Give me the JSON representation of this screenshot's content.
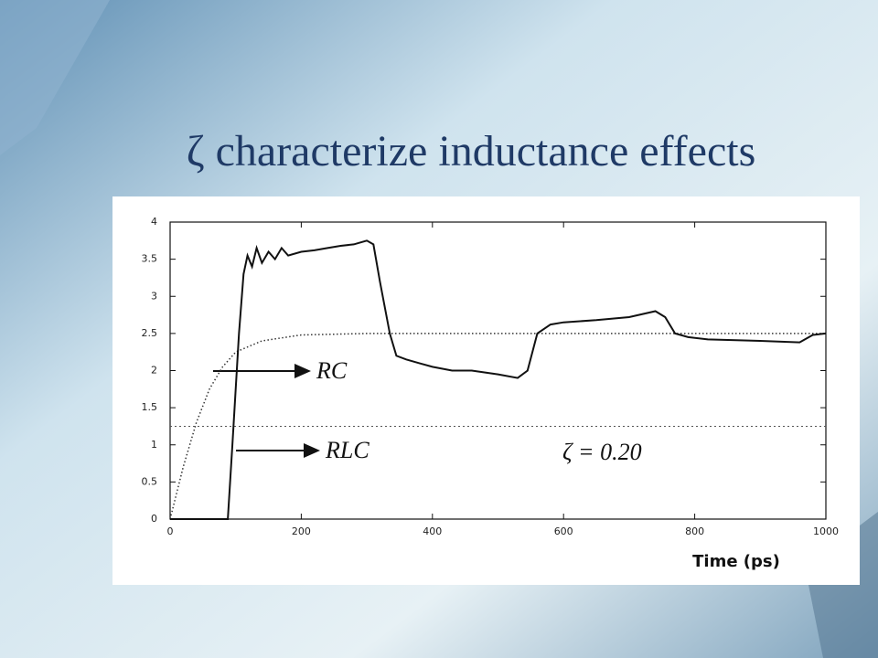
{
  "chart_data": {
    "type": "line",
    "title": "ζ characterize inductance effects",
    "x_label": "Time (ps)",
    "annotation": "ζ = 0.20",
    "xlim": [
      0,
      1000
    ],
    "xticks": [
      0,
      200,
      400,
      600,
      800,
      1000
    ],
    "ylim": [
      0,
      4
    ],
    "yticks": [
      0,
      0.5,
      1,
      1.5,
      2,
      2.5,
      3,
      3.5,
      4
    ],
    "reference_line": 1.25,
    "series": [
      {
        "name": "RC",
        "style": "dotted",
        "color": "#333333",
        "x": [
          0,
          20,
          40,
          60,
          80,
          100,
          140,
          200,
          300,
          1000
        ],
        "values": [
          0,
          0.7,
          1.3,
          1.75,
          2.05,
          2.25,
          2.4,
          2.48,
          2.5,
          2.5
        ]
      },
      {
        "name": "RLC",
        "style": "solid",
        "color": "#111111",
        "x": [
          0,
          88,
          95,
          105,
          112,
          118,
          125,
          132,
          140,
          150,
          160,
          170,
          180,
          200,
          220,
          240,
          260,
          280,
          300,
          310,
          320,
          335,
          345,
          360,
          380,
          400,
          430,
          460,
          500,
          530,
          545,
          560,
          580,
          600,
          650,
          700,
          740,
          755,
          770,
          790,
          820,
          900,
          960,
          980,
          1000
        ],
        "values": [
          0,
          0,
          1,
          2.5,
          3.3,
          3.55,
          3.4,
          3.65,
          3.45,
          3.6,
          3.5,
          3.65,
          3.55,
          3.6,
          3.62,
          3.65,
          3.68,
          3.7,
          3.75,
          3.7,
          3.2,
          2.5,
          2.2,
          2.15,
          2.1,
          2.05,
          2.0,
          2.0,
          1.95,
          1.9,
          2.0,
          2.5,
          2.62,
          2.65,
          2.68,
          2.72,
          2.8,
          2.72,
          2.5,
          2.45,
          2.42,
          2.4,
          2.38,
          2.48,
          2.5
        ]
      }
    ]
  }
}
